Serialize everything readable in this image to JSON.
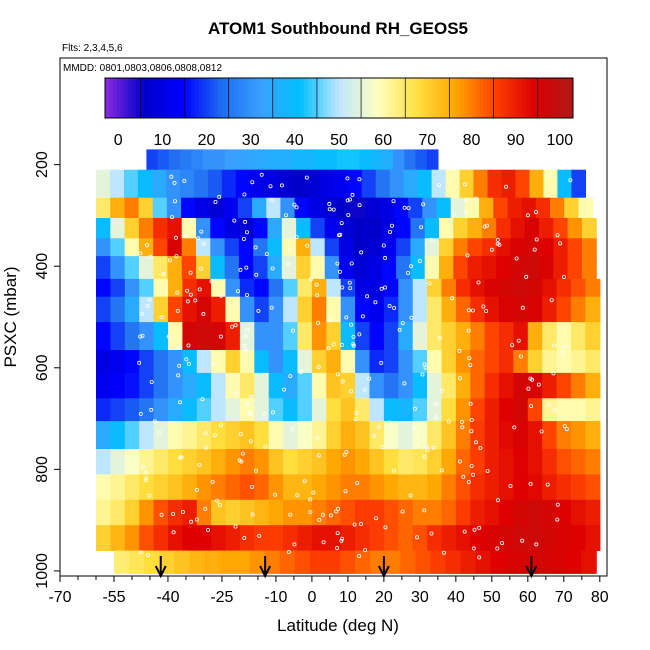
{
  "chart_data": {
    "type": "heatmap",
    "title": "ATOM1 Southbound RH_GEOS5",
    "subtitle_flights": "Flts: 2,3,4,5,6",
    "subtitle_dates": "MMDD: 0801,0803,0806,0808,0812",
    "xlabel": "Latitude (deg N)",
    "ylabel": "PSXC (mbar)",
    "xlim": [
      -70,
      82
    ],
    "ylim": [
      1010,
      -10
    ],
    "x_ticks": [
      -70,
      -55,
      -40,
      -25,
      -10,
      0,
      10,
      20,
      30,
      40,
      50,
      60,
      70,
      80
    ],
    "x_tick_labels": [
      "-70",
      "-55",
      "-40",
      "-25",
      "-10",
      "0",
      "10",
      "20",
      "30",
      "40",
      "50",
      "60",
      "70",
      "80"
    ],
    "y_ticks": [
      200,
      400,
      600,
      800,
      1000
    ],
    "y_tick_labels": [
      "200",
      "400",
      "600",
      "800",
      "1000"
    ],
    "colorbar": {
      "range": [
        -3,
        103
      ],
      "ticks": [
        0,
        10,
        20,
        30,
        40,
        50,
        60,
        70,
        80,
        90,
        100
      ],
      "tick_labels": [
        "0",
        "10",
        "20",
        "30",
        "40",
        "50",
        "60",
        "70",
        "80",
        "90",
        "100"
      ],
      "colors": [
        "#8a2be2",
        "#0000c8",
        "#0000ff",
        "#1e6cf0",
        "#3aa0ff",
        "#00c0ff",
        "#bfe6ff",
        "#ffffc0",
        "#ffe040",
        "#ffa500",
        "#ff4000",
        "#dd0000",
        "#b01818"
      ]
    },
    "profile_markers_lat": [
      -42,
      -13,
      20,
      61
    ],
    "layers": [
      {
        "p_top": 170,
        "p_bot": 210,
        "lat_start": -46,
        "lat_end": 35,
        "values": [
          20,
          22,
          24,
          26,
          28,
          30,
          30,
          32,
          33,
          34,
          35,
          36,
          36,
          38,
          38,
          40,
          40,
          42,
          42,
          40,
          38,
          36,
          30,
          25,
          22,
          20
        ]
      },
      {
        "p_top": 210,
        "p_bot": 265,
        "lat_start": -60,
        "lat_end": 76,
        "values": [
          55,
          50,
          45,
          40,
          35,
          30,
          28,
          25,
          22,
          18,
          15,
          12,
          10,
          8,
          6,
          8,
          10,
          12,
          15,
          20,
          25,
          30,
          35,
          40,
          50,
          60,
          70,
          80,
          88,
          90,
          85,
          75,
          60,
          40,
          20
        ]
      },
      {
        "p_top": 265,
        "p_bot": 305,
        "lat_start": -60,
        "lat_end": 78,
        "values": [
          65,
          75,
          80,
          70,
          45,
          30,
          15,
          10,
          8,
          12,
          20,
          35,
          50,
          30,
          15,
          10,
          8,
          6,
          5,
          8,
          10,
          15,
          20,
          30,
          40,
          55,
          60,
          75,
          85,
          90,
          92,
          88,
          80,
          70,
          60
        ]
      },
      {
        "p_top": 305,
        "p_bot": 345,
        "lat_start": -60,
        "lat_end": 79,
        "values": [
          40,
          55,
          70,
          80,
          88,
          92,
          60,
          30,
          15,
          10,
          8,
          15,
          35,
          55,
          40,
          20,
          12,
          8,
          6,
          6,
          10,
          15,
          25,
          40,
          60,
          70,
          75,
          80,
          88,
          92,
          95,
          90,
          85,
          78,
          70
        ]
      },
      {
        "p_top": 345,
        "p_bot": 380,
        "lat_start": -60,
        "lat_end": 79,
        "values": [
          30,
          45,
          60,
          75,
          85,
          95,
          80,
          50,
          30,
          20,
          15,
          25,
          40,
          60,
          75,
          50,
          20,
          10,
          6,
          8,
          12,
          20,
          35,
          55,
          70,
          80,
          85,
          88,
          92,
          95,
          96,
          94,
          90,
          85,
          80
        ]
      },
      {
        "p_top": 380,
        "p_bot": 425,
        "lat_start": -60,
        "lat_end": 79,
        "values": [
          20,
          30,
          45,
          55,
          65,
          75,
          85,
          70,
          40,
          25,
          15,
          20,
          35,
          55,
          70,
          60,
          30,
          12,
          8,
          10,
          15,
          25,
          40,
          60,
          75,
          85,
          90,
          92,
          94,
          96,
          97,
          95,
          90,
          85,
          80
        ]
      },
      {
        "p_top": 425,
        "p_bot": 460,
        "lat_start": -60,
        "lat_end": 80,
        "values": [
          15,
          20,
          30,
          45,
          60,
          75,
          88,
          92,
          60,
          30,
          18,
          15,
          25,
          45,
          65,
          75,
          50,
          20,
          10,
          10,
          15,
          30,
          50,
          70,
          80,
          88,
          92,
          95,
          96,
          97,
          96,
          92,
          88,
          84,
          80
        ]
      },
      {
        "p_top": 460,
        "p_bot": 510,
        "lat_start": -60,
        "lat_end": 80,
        "values": [
          20,
          25,
          35,
          50,
          70,
          85,
          92,
          96,
          90,
          60,
          30,
          20,
          30,
          50,
          70,
          80,
          60,
          30,
          15,
          12,
          18,
          30,
          50,
          65,
          75,
          82,
          88,
          92,
          95,
          96,
          95,
          90,
          85,
          80,
          75
        ]
      },
      {
        "p_top": 510,
        "p_bot": 565,
        "lat_start": -60,
        "lat_end": 80,
        "values": [
          15,
          20,
          25,
          30,
          40,
          60,
          96,
          97,
          96,
          90,
          55,
          30,
          30,
          45,
          65,
          78,
          70,
          40,
          20,
          15,
          20,
          35,
          55,
          65,
          70,
          75,
          80,
          85,
          88,
          92,
          75,
          65,
          60,
          65,
          70
        ]
      },
      {
        "p_top": 565,
        "p_bot": 610,
        "lat_start": -60,
        "lat_end": 80,
        "values": [
          10,
          12,
          15,
          20,
          25,
          30,
          40,
          50,
          60,
          70,
          60,
          40,
          30,
          40,
          55,
          70,
          75,
          60,
          30,
          18,
          20,
          30,
          45,
          60,
          70,
          78,
          82,
          85,
          88,
          80,
          70,
          62,
          60,
          62,
          65
        ]
      },
      {
        "p_top": 610,
        "p_bot": 660,
        "lat_start": -60,
        "lat_end": 80,
        "values": [
          12,
          14,
          16,
          20,
          25,
          30,
          35,
          40,
          50,
          60,
          65,
          55,
          40,
          35,
          45,
          60,
          72,
          70,
          50,
          30,
          25,
          30,
          40,
          55,
          65,
          75,
          82,
          88,
          92,
          96,
          95,
          90,
          85,
          80,
          75
        ]
      },
      {
        "p_top": 660,
        "p_bot": 705,
        "lat_start": -60,
        "lat_end": 80,
        "values": [
          18,
          20,
          22,
          25,
          30,
          35,
          40,
          45,
          50,
          55,
          60,
          55,
          45,
          40,
          45,
          55,
          68,
          72,
          65,
          50,
          40,
          38,
          45,
          55,
          68,
          78,
          85,
          90,
          94,
          96,
          85,
          62,
          60,
          60,
          62
        ]
      },
      {
        "p_top": 705,
        "p_bot": 760,
        "lat_start": -60,
        "lat_end": 80,
        "values": [
          35,
          40,
          45,
          50,
          55,
          60,
          62,
          65,
          68,
          70,
          72,
          68,
          60,
          55,
          58,
          62,
          70,
          75,
          72,
          65,
          58,
          55,
          58,
          65,
          72,
          80,
          86,
          90,
          93,
          95,
          92,
          85,
          80,
          78,
          75
        ]
      },
      {
        "p_top": 760,
        "p_bot": 810,
        "lat_start": -60,
        "lat_end": 80,
        "values": [
          50,
          55,
          58,
          62,
          65,
          68,
          70,
          72,
          75,
          78,
          80,
          78,
          72,
          68,
          70,
          72,
          76,
          78,
          76,
          72,
          68,
          65,
          66,
          70,
          76,
          82,
          86,
          90,
          92,
          94,
          92,
          88,
          84,
          82,
          80
        ]
      },
      {
        "p_top": 810,
        "p_bot": 860,
        "lat_start": -60,
        "lat_end": 80,
        "values": [
          60,
          62,
          65,
          68,
          70,
          72,
          75,
          78,
          80,
          82,
          84,
          82,
          78,
          74,
          74,
          76,
          78,
          80,
          80,
          78,
          76,
          74,
          74,
          76,
          80,
          84,
          88,
          90,
          92,
          94,
          93,
          90,
          88,
          86,
          84
        ]
      },
      {
        "p_top": 860,
        "p_bot": 910,
        "lat_start": -60,
        "lat_end": 80,
        "values": [
          62,
          65,
          70,
          78,
          84,
          88,
          90,
          80,
          72,
          70,
          72,
          74,
          76,
          78,
          78,
          80,
          82,
          84,
          86,
          86,
          84,
          82,
          80,
          80,
          82,
          86,
          90,
          92,
          94,
          96,
          97,
          96,
          94,
          92,
          90
        ]
      },
      {
        "p_top": 910,
        "p_bot": 960,
        "lat_start": -60,
        "lat_end": 80,
        "values": [
          70,
          74,
          78,
          84,
          88,
          92,
          94,
          94,
          92,
          90,
          88,
          86,
          86,
          88,
          90,
          92,
          92,
          90,
          88,
          86,
          84,
          82,
          84,
          88,
          90,
          92,
          94,
          95,
          96,
          97,
          97,
          96,
          95,
          94,
          92
        ]
      },
      {
        "p_top": 960,
        "p_bot": 1005,
        "lat_start": -55,
        "lat_end": 79,
        "values": [
          64,
          66,
          68,
          70,
          72,
          74,
          75,
          76,
          76,
          78,
          80,
          82,
          84,
          86,
          86,
          84,
          82,
          80,
          80,
          82,
          84,
          86,
          88,
          90,
          92,
          94,
          95,
          96,
          96,
          95,
          94,
          92
        ]
      }
    ]
  }
}
